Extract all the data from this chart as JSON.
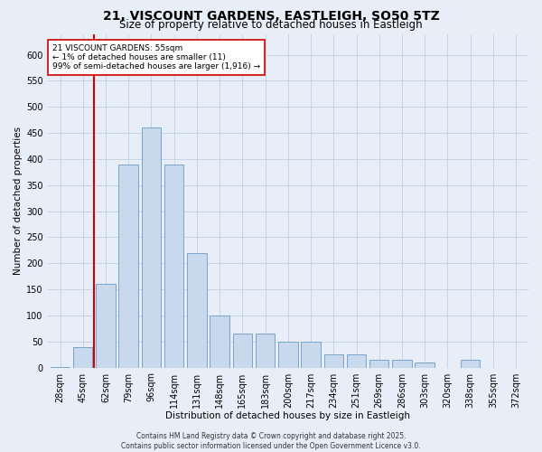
{
  "title1": "21, VISCOUNT GARDENS, EASTLEIGH, SO50 5TZ",
  "title2": "Size of property relative to detached houses in Eastleigh",
  "xlabel": "Distribution of detached houses by size in Eastleigh",
  "ylabel": "Number of detached properties",
  "categories": [
    "28sqm",
    "45sqm",
    "62sqm",
    "79sqm",
    "96sqm",
    "114sqm",
    "131sqm",
    "148sqm",
    "165sqm",
    "183sqm",
    "200sqm",
    "217sqm",
    "234sqm",
    "251sqm",
    "269sqm",
    "286sqm",
    "303sqm",
    "320sqm",
    "338sqm",
    "355sqm",
    "372sqm"
  ],
  "values": [
    1,
    40,
    160,
    390,
    460,
    390,
    220,
    100,
    65,
    65,
    50,
    50,
    25,
    25,
    15,
    15,
    10,
    0,
    15,
    0,
    0
  ],
  "bar_color": "#c8d9ee",
  "bar_edge_color": "#7aa4cc",
  "grid_color": "#c0cfe0",
  "background_color": "#e8eef8",
  "vline_color": "#cc0000",
  "annotation_line1": "21 VISCOUNT GARDENS: 55sqm",
  "annotation_line2": "← 1% of detached houses are smaller (11)",
  "annotation_line3": "99% of semi-detached houses are larger (1,916) →",
  "annotation_box_color": "#ffffff",
  "annotation_box_edge_color": "#cc0000",
  "ylim": [
    0,
    640
  ],
  "yticks": [
    0,
    50,
    100,
    150,
    200,
    250,
    300,
    350,
    400,
    450,
    500,
    550,
    600
  ],
  "footer": "Contains HM Land Registry data © Crown copyright and database right 2025.\nContains public sector information licensed under the Open Government Licence v3.0.",
  "title_fontsize": 10,
  "subtitle_fontsize": 8.5,
  "axis_label_fontsize": 7.5,
  "tick_fontsize": 7,
  "annotation_fontsize": 6.5,
  "footer_fontsize": 5.5
}
